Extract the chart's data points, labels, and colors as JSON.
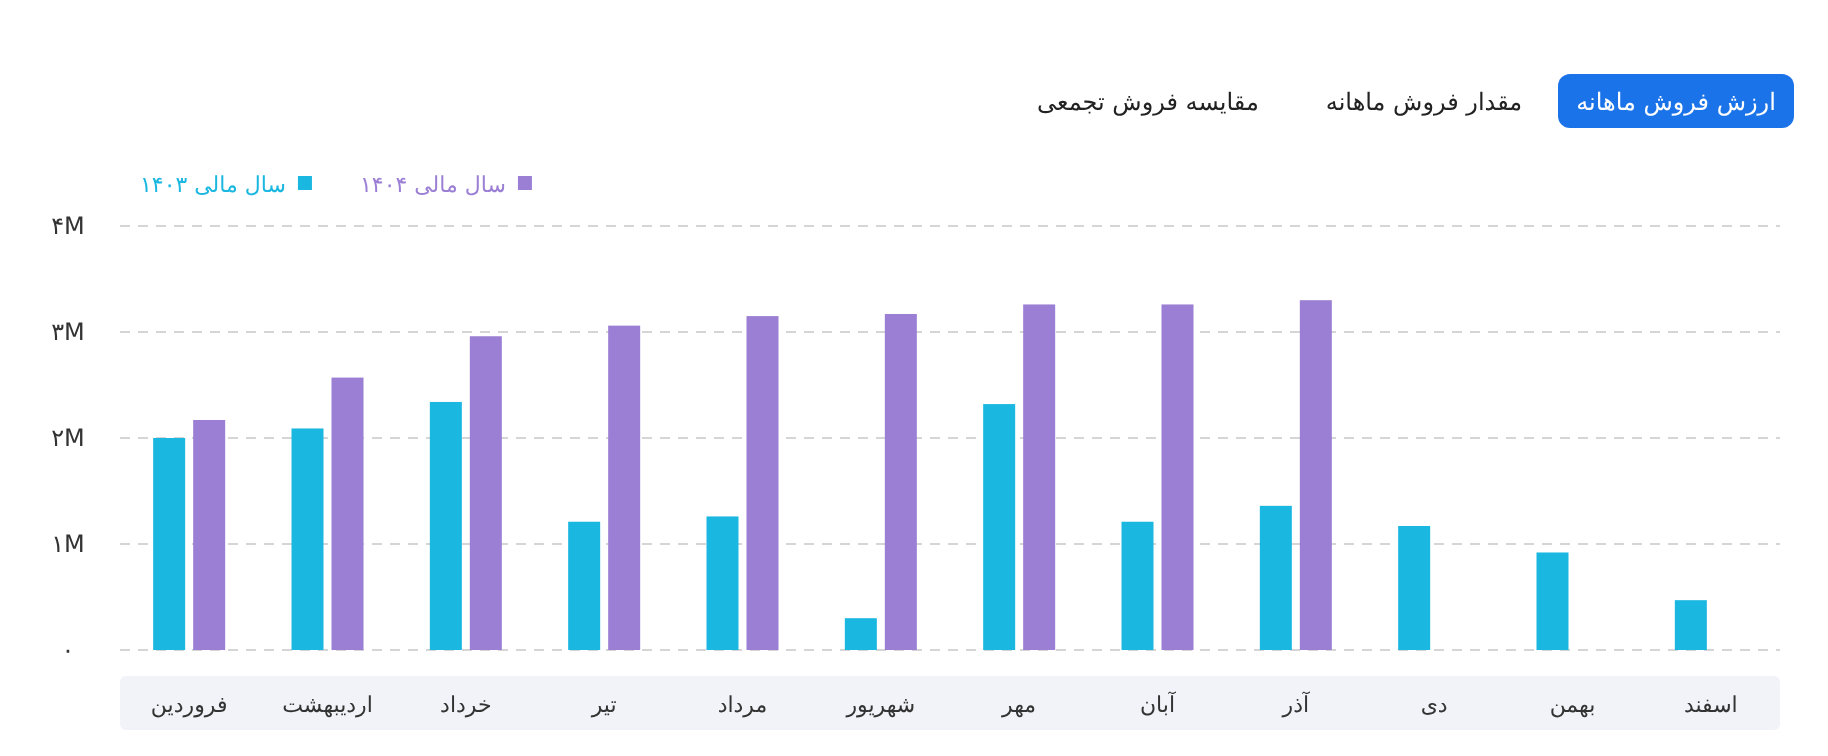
{
  "chart_data": {
    "type": "bar",
    "categories": [
      "فروردین",
      "اردیبهشت",
      "خرداد",
      "تیر",
      "مرداد",
      "شهریور",
      "مهر",
      "آبان",
      "آذر",
      "دی",
      "بهمن",
      "اسفند"
    ],
    "series": [
      {
        "name": "سال مالی ۱۴۰۳",
        "color": "#1ab7e0",
        "values": [
          2.0,
          2.09,
          2.34,
          1.21,
          1.26,
          0.3,
          2.32,
          1.21,
          1.36,
          1.17,
          0.92,
          0.47
        ]
      },
      {
        "name": "سال مالی ۱۴۰۴",
        "color": "#9b7fd4",
        "values": [
          2.17,
          2.57,
          2.96,
          3.06,
          3.15,
          3.17,
          3.26,
          3.26,
          3.3,
          null,
          null,
          null
        ]
      }
    ],
    "ylim": [
      0,
      4
    ],
    "yticks": [
      {
        "value": 0,
        "label": "۰"
      },
      {
        "value": 1,
        "label": "۱M"
      },
      {
        "value": 2,
        "label": "۲M"
      },
      {
        "value": 3,
        "label": "۳M"
      },
      {
        "value": 4,
        "label": "۴M"
      }
    ],
    "grid": "y",
    "legend": "top left",
    "annotations": [
      "ارزش فروش ماهانه",
      "مقدار فروش ماهانه",
      "مقایسه فروش تجمعی"
    ]
  }
}
